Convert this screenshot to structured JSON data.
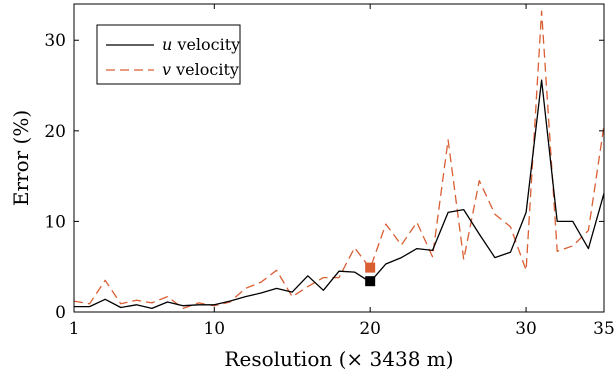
{
  "chart_data": {
    "type": "line",
    "xlabel": "Resolution (× 3438 m)",
    "ylabel": "Error (%)",
    "xlim": [
      1,
      35
    ],
    "ylim": [
      0,
      34
    ],
    "x_ticks": [
      1,
      10,
      20,
      30,
      35
    ],
    "y_ticks": [
      0,
      10,
      20,
      30
    ],
    "grid": false,
    "legend": "top-left",
    "series": [
      {
        "name": "u velocity",
        "italic_part": "u",
        "text_part": " velocity",
        "color": "#000000",
        "style": "solid",
        "x": [
          1,
          2,
          3,
          4,
          5,
          6,
          7,
          8,
          9,
          10,
          11,
          12,
          13,
          14,
          15,
          16,
          17,
          18,
          19,
          20,
          21,
          22,
          23,
          24,
          25,
          26,
          27,
          28,
          29,
          30,
          31,
          32,
          33,
          34,
          35
        ],
        "y": [
          0.6,
          0.6,
          1.4,
          0.5,
          0.8,
          0.4,
          1.1,
          0.7,
          0.8,
          0.8,
          1.2,
          1.7,
          2.1,
          2.6,
          2.2,
          4.0,
          2.4,
          4.5,
          4.4,
          3.3,
          5.3,
          6.0,
          7.0,
          6.8,
          11.0,
          11.3,
          8.6,
          6.0,
          6.6,
          11.0,
          25.6,
          10.0,
          10.0,
          7.0,
          13.1
        ]
      },
      {
        "name": "v velocity",
        "italic_part": "v",
        "text_part": " velocity",
        "color": "#d95f33",
        "style": "dashed",
        "x": [
          1,
          2,
          3,
          4,
          5,
          6,
          7,
          8,
          9,
          10,
          11,
          12,
          13,
          14,
          15,
          16,
          17,
          18,
          19,
          20,
          21,
          22,
          23,
          24,
          25,
          26,
          27,
          28,
          29,
          30,
          31,
          32,
          33,
          34,
          35
        ],
        "y": [
          1.2,
          0.9,
          3.5,
          0.9,
          1.3,
          1.0,
          1.7,
          0.4,
          1.0,
          0.7,
          1.1,
          2.6,
          3.3,
          4.6,
          1.7,
          2.8,
          3.8,
          3.8,
          7.1,
          4.8,
          9.7,
          7.4,
          9.9,
          6.1,
          19.0,
          5.8,
          14.5,
          10.8,
          9.4,
          4.6,
          33.2,
          6.7,
          7.3,
          9.0,
          20.6
        ]
      }
    ],
    "markers": [
      {
        "series": "v velocity",
        "x": 20,
        "y": 4.9,
        "color": "#d95f33"
      },
      {
        "series": "u velocity",
        "x": 20,
        "y": 3.4,
        "color": "#000000"
      }
    ]
  }
}
